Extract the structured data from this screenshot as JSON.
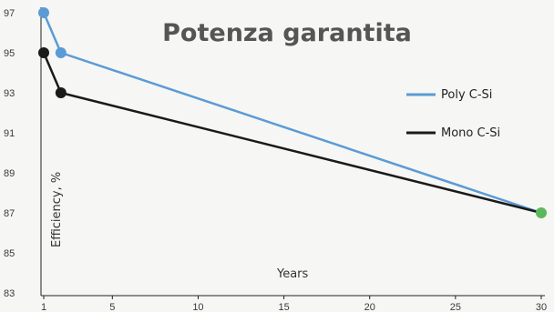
{
  "chart_data": {
    "type": "line",
    "title": "Potenza garantita",
    "xlabel": "Years",
    "ylabel": "Efficiency, %",
    "xlim": [
      1,
      30
    ],
    "ylim": [
      83,
      97
    ],
    "x_ticks": [
      1,
      5,
      10,
      15,
      20,
      25,
      30
    ],
    "y_ticks": [
      83,
      85,
      87,
      89,
      91,
      93,
      95,
      97
    ],
    "grid": false,
    "legend_position": "right",
    "series": [
      {
        "name": "Poly C-Si",
        "color": "#5b9bd5",
        "points": [
          [
            1,
            97
          ],
          [
            2,
            95
          ],
          [
            30,
            87
          ]
        ]
      },
      {
        "name": "Mono C-Si",
        "color": "#1a1a1a",
        "points": [
          [
            1,
            95
          ],
          [
            2,
            93
          ],
          [
            30,
            87
          ]
        ]
      }
    ],
    "end_point": {
      "x": 30,
      "y": 87,
      "color": "#5cb85c"
    }
  }
}
